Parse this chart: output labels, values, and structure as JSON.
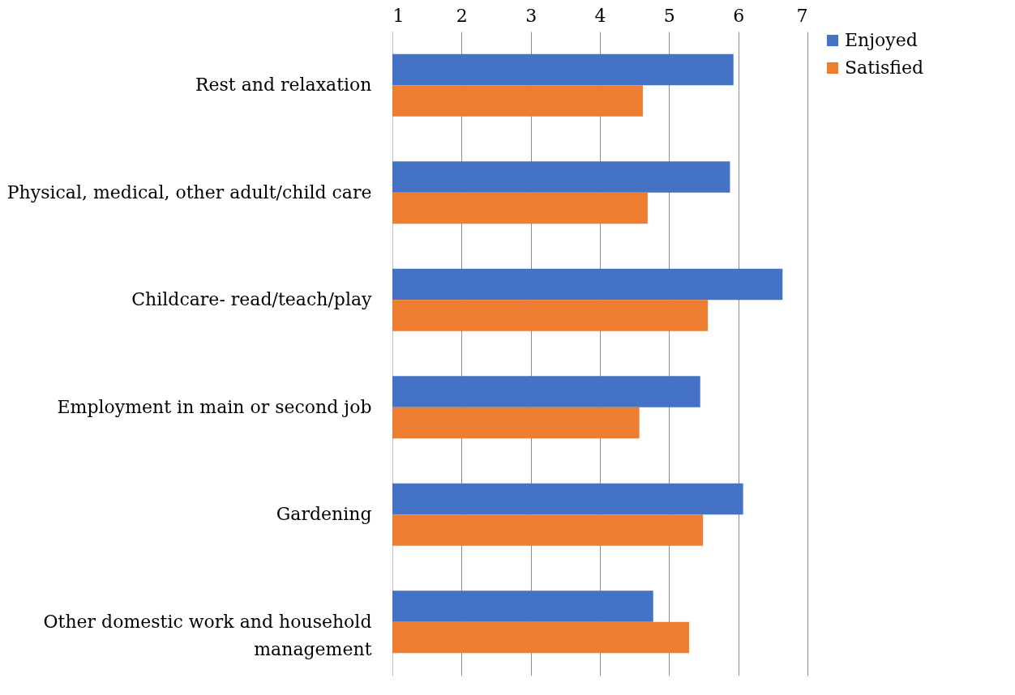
{
  "chart_data": {
    "type": "bar",
    "orientation": "horizontal",
    "categories": [
      "Rest and relaxation",
      "Physical, medical, other adult/child care",
      "Childcare- read/teach/play",
      "Employment in main or second job",
      "Gardening",
      "Other domestic work and household management"
    ],
    "series": [
      {
        "name": "Enjoyed",
        "color": "#4472c4",
        "values": [
          5.93,
          5.88,
          6.64,
          5.45,
          6.07,
          4.77
        ]
      },
      {
        "name": "Satisfied",
        "color": "#ed7d31",
        "values": [
          4.62,
          4.69,
          5.56,
          4.57,
          5.49,
          5.29
        ]
      }
    ],
    "xlim": [
      1,
      7
    ],
    "xticks": [
      1,
      2,
      3,
      4,
      5,
      6,
      7
    ],
    "grid": "x",
    "legend": "right"
  }
}
